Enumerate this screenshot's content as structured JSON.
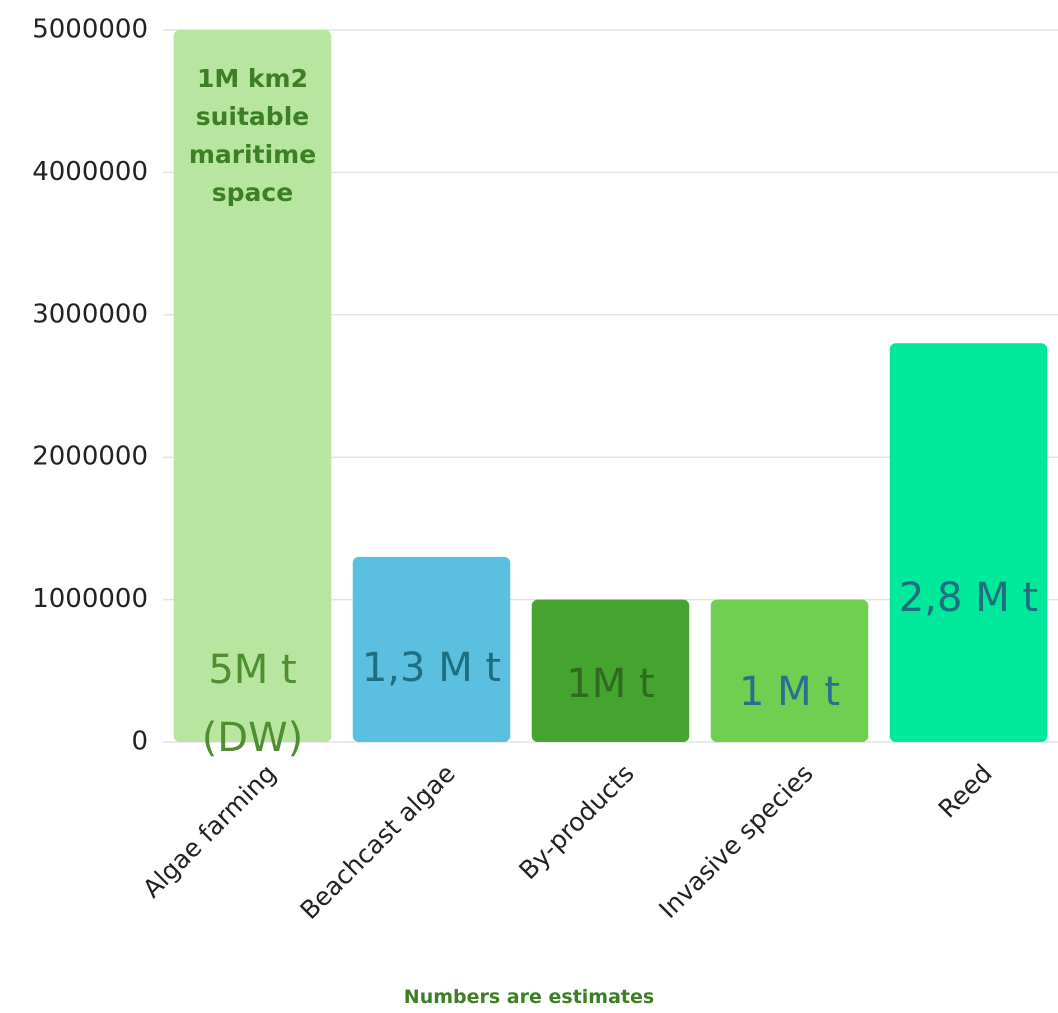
{
  "chart_data": {
    "type": "bar",
    "categories": [
      "Algae farming",
      "Beachcast algae",
      "By-products",
      "Invasive species",
      "Reed"
    ],
    "values": [
      5000000,
      1300000,
      1000000,
      1000000,
      2800000
    ],
    "value_labels": [
      "5M t (DW)",
      "1,3 M t",
      "1M t",
      "1 M t",
      "2,8 M t"
    ],
    "colors": [
      "#b8e6a0",
      "#5bbfe0",
      "#45a330",
      "#6fcf50",
      "#00e89a"
    ],
    "value_label_colors": [
      "#4f8f2f",
      "#1e6f80",
      "#2f6a1e",
      "#2a6f90",
      "#1e6f80"
    ],
    "ylim": [
      0,
      5000000
    ],
    "yticks": [
      0,
      1000000,
      2000000,
      3000000,
      4000000,
      5000000
    ],
    "grid": true,
    "annotation": "1M km2 suitable maritime space",
    "footnote": "Numbers are estimates"
  }
}
